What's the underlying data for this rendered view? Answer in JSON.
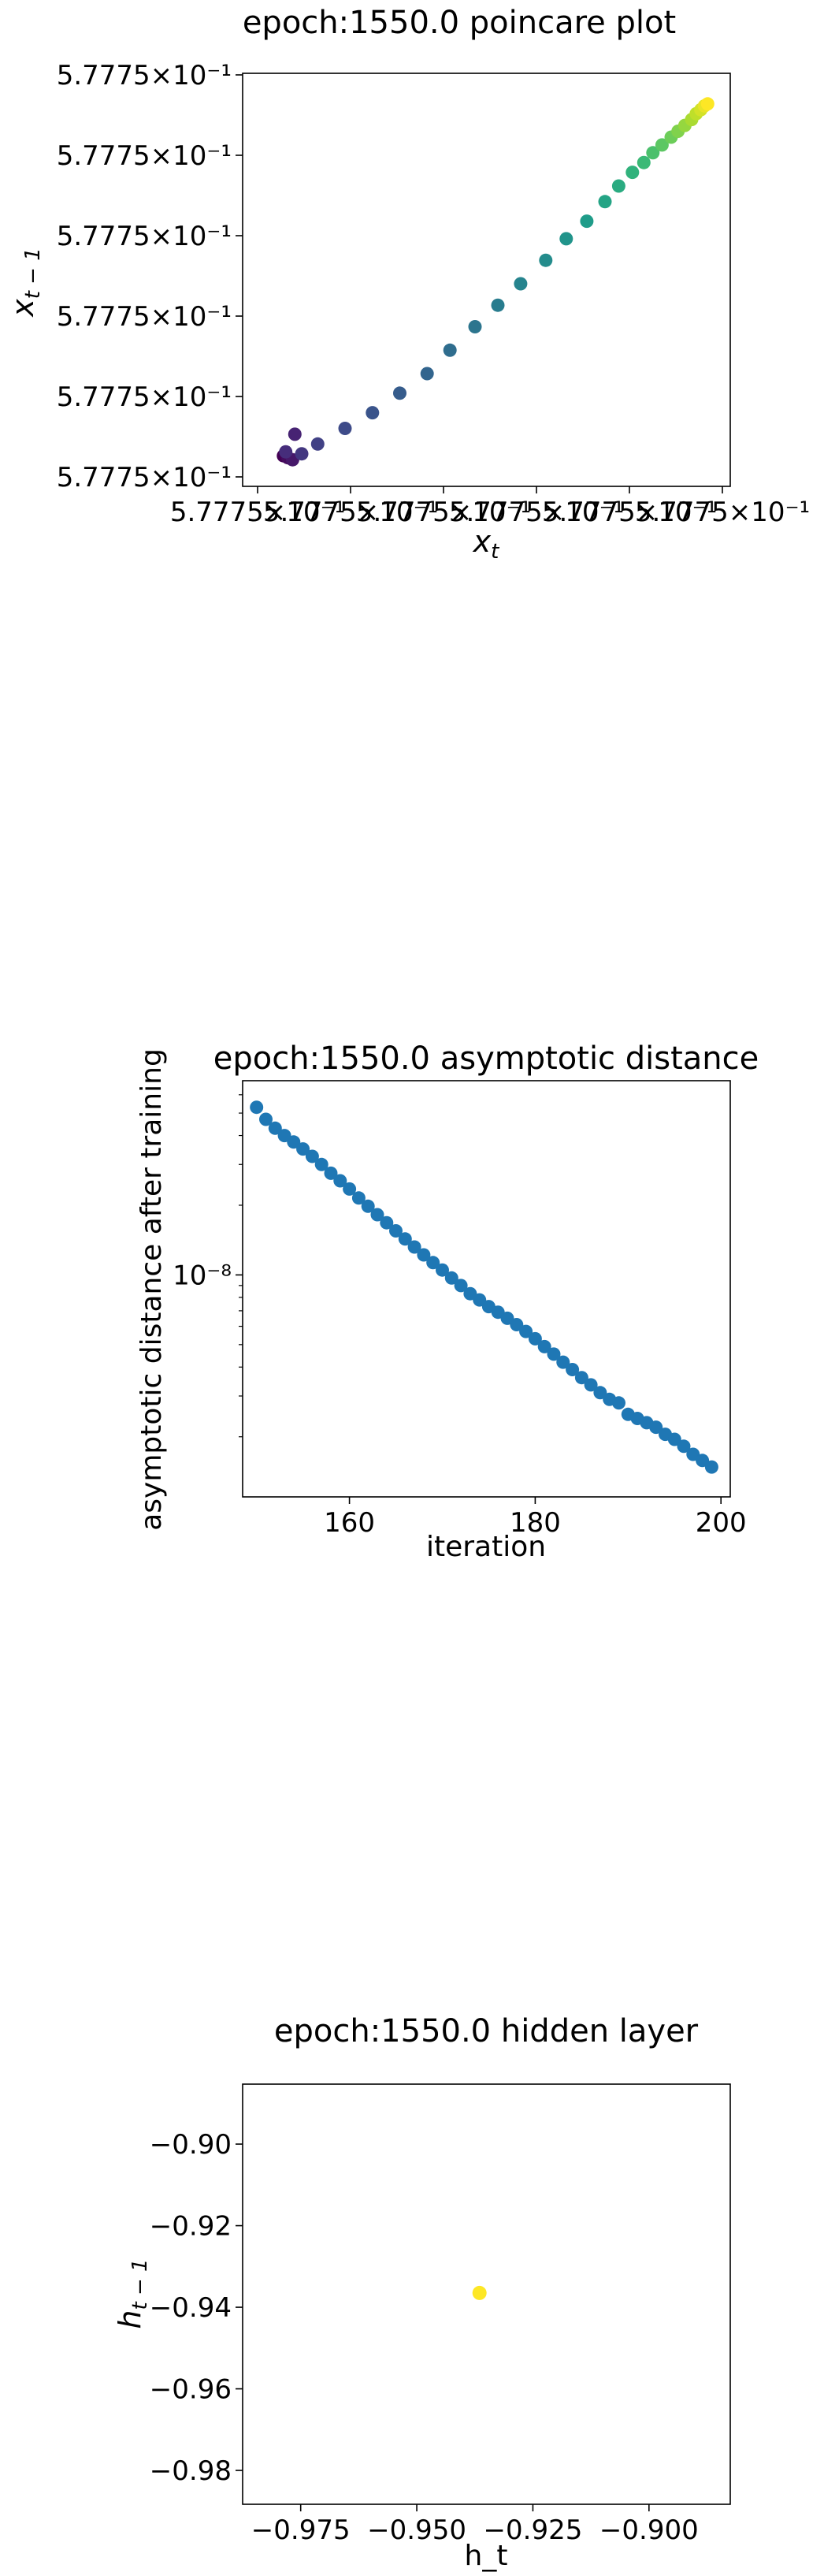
{
  "colors": {
    "viridis_start": "#440154",
    "viridis_mid": "#21908c",
    "viridis_end": "#fde725",
    "blue_markers": "#1f77b4",
    "axis": "#000000",
    "background": "#ffffff"
  },
  "chart_data": [
    {
      "type": "scatter",
      "title": "epoch:1550.0 poincare plot",
      "xlabel": "x_t",
      "ylabel": "x_{t-1}",
      "colormap": "viridis",
      "grid": false,
      "x_tick_labels": [
        "5.7775×10⁻¹",
        "5.7775×10⁻¹",
        "5.7775×10⁻¹",
        "5.7775×10⁻¹",
        "5.7775×10⁻¹",
        "5.7775×10⁻¹"
      ],
      "y_tick_labels": [
        "5.7775×10⁻¹",
        "5.7775×10⁻¹",
        "5.7775×10⁻¹",
        "5.7775×10⁻¹",
        "5.7775×10⁻¹",
        "5.7775×10⁻¹"
      ],
      "x_range": [
        0,
        100
      ],
      "y_range": [
        0,
        100
      ],
      "x": [
        5.5,
        6.5,
        7.5,
        8.0,
        6.0,
        9.5,
        13,
        19,
        25,
        31,
        37,
        42,
        47.5,
        52.5,
        57.5,
        63,
        67.5,
        72,
        76,
        79,
        82,
        84.5,
        86.5,
        88.5,
        90.5,
        92,
        93.5,
        95,
        96,
        97,
        97.8,
        98.5
      ],
      "y": [
        5.0,
        4.5,
        4.0,
        10.5,
        6.0,
        5.5,
        8.0,
        12.0,
        16.0,
        21.0,
        26.0,
        32.0,
        38.0,
        43.5,
        49.0,
        55.0,
        60.5,
        65.0,
        70.0,
        74.0,
        77.5,
        80.0,
        82.5,
        84.5,
        86.5,
        88.0,
        89.5,
        91.0,
        92.5,
        93.5,
        94.5,
        95.0
      ]
    },
    {
      "type": "scatter",
      "title": "epoch:1550.0 asymptotic distance",
      "xlabel": "iteration",
      "ylabel": "asymptotic distance after training",
      "y_scale": "log",
      "grid": false,
      "x_ticks": [
        160,
        180,
        200
      ],
      "y_tick_label_main": "10⁻⁸",
      "xlim": [
        148.5,
        201
      ],
      "ylim": [
        1.1e-09,
        6.9e-08
      ],
      "x": [
        150,
        151,
        152,
        153,
        154,
        155,
        156,
        157,
        158,
        159,
        160,
        161,
        162,
        163,
        164,
        165,
        166,
        167,
        168,
        169,
        170,
        171,
        172,
        173,
        174,
        175,
        176,
        177,
        178,
        179,
        180,
        181,
        182,
        183,
        184,
        185,
        186,
        187,
        188,
        189,
        190,
        191,
        192,
        193,
        194,
        195,
        196,
        197,
        198,
        199
      ],
      "y": [
        5.3e-08,
        4.7e-08,
        4.3e-08,
        4e-08,
        3.75e-08,
        3.5e-08,
        3.25e-08,
        3e-08,
        2.75e-08,
        2.55e-08,
        2.35e-08,
        2.15e-08,
        1.98e-08,
        1.82e-08,
        1.68e-08,
        1.55e-08,
        1.43e-08,
        1.32e-08,
        1.22e-08,
        1.13e-08,
        1.05e-08,
        9.7e-09,
        9e-09,
        8.3e-09,
        7.8e-09,
        7.3e-09,
        6.9e-09,
        6.5e-09,
        6.1e-09,
        5.7e-09,
        5.3e-09,
        4.9e-09,
        4.55e-09,
        4.2e-09,
        3.9e-09,
        3.6e-09,
        3.35e-09,
        3.1e-09,
        2.9e-09,
        2.8e-09,
        2.5e-09,
        2.4e-09,
        2.3e-09,
        2.2e-09,
        2.05e-09,
        1.95e-09,
        1.82e-09,
        1.68e-09,
        1.58e-09,
        1.48e-09
      ]
    },
    {
      "type": "scatter",
      "title": "epoch:1550.0 hidden layer",
      "xlabel": "h_t",
      "ylabel": "h_{t-1}",
      "grid": false,
      "x_ticks": [
        -0.975,
        -0.95,
        -0.925,
        -0.9
      ],
      "y_ticks": [
        -0.9,
        -0.92,
        -0.94,
        -0.96,
        -0.98
      ],
      "xlim": [
        -0.9875,
        -0.8825
      ],
      "ylim": [
        -0.9883,
        -0.8853
      ],
      "x": [
        -0.9365
      ],
      "y": [
        -0.9365
      ],
      "point_color": "#fde725"
    }
  ]
}
